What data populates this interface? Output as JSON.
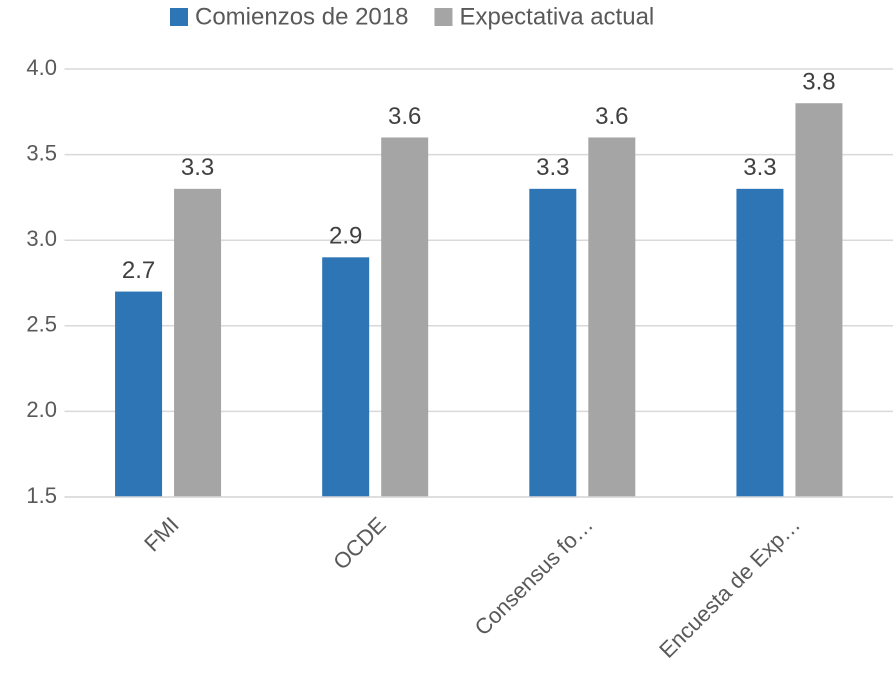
{
  "chart_data": {
    "type": "bar",
    "categories": [
      "FMI",
      "OCDE",
      "Consensus fo…",
      "Encuesta de Exp…"
    ],
    "series": [
      {
        "name": "Comienzos de 2018",
        "color": "#2e75b6",
        "values": [
          2.7,
          2.9,
          3.3,
          3.3
        ]
      },
      {
        "name": "Expectativa actual",
        "color": "#a5a5a5",
        "values": [
          3.3,
          3.6,
          3.6,
          3.8
        ]
      }
    ],
    "ylim": [
      1.5,
      4.0
    ],
    "yticks": [
      1.5,
      {
        "value": 2,
        "label": "2.0"
      },
      2.5,
      {
        "value": 3,
        "label": "3.0"
      },
      3.5,
      {
        "value": 4,
        "label": "4.0"
      }
    ],
    "grid": true,
    "legend": "top"
  }
}
